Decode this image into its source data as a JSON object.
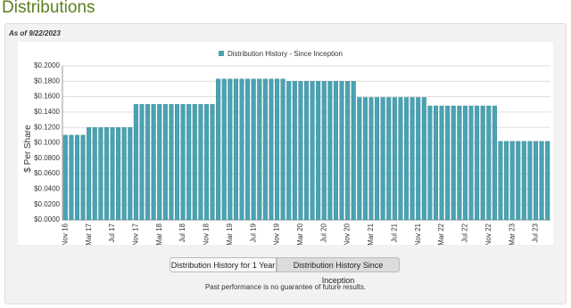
{
  "page": {
    "heading": "Distributions",
    "as_of": "As of 9/22/2023",
    "buttons": [
      "Distribution History for 1 Year",
      "Distribution History Since Inception"
    ],
    "footnote": "Past performance is no guarantee of future results."
  },
  "chart_data": {
    "type": "bar",
    "legend": "Distribution History - Since Inception",
    "y_label": "$ Per Share",
    "color": "#4aa3b3",
    "grid": true,
    "ylim": [
      0,
      0.2
    ],
    "yticks": [
      {
        "value": 0,
        "label": "$0.0000"
      },
      {
        "value": 0.02,
        "label": "$0.0200"
      },
      {
        "value": 0.04,
        "label": "$0.0400"
      },
      {
        "value": 0.06,
        "label": "$0.0600"
      },
      {
        "value": 0.08,
        "label": "$0.0800"
      },
      {
        "value": 0.1,
        "label": "$0.1000"
      },
      {
        "value": 0.12,
        "label": "$0.1200"
      },
      {
        "value": 0.14,
        "label": "$0.1400"
      },
      {
        "value": 0.16,
        "label": "$0.1600"
      },
      {
        "value": 0.18,
        "label": "$0.1800"
      },
      {
        "value": 0.2,
        "label": "$0.2000"
      }
    ],
    "categories": [
      "Nov 16",
      null,
      null,
      null,
      "Mar 17",
      null,
      null,
      null,
      "Jul 17",
      null,
      null,
      null,
      "Nov 17",
      null,
      null,
      null,
      "Mar 18",
      null,
      null,
      null,
      "Jul 18",
      null,
      null,
      null,
      "Nov 18",
      null,
      null,
      null,
      "Mar 19",
      null,
      null,
      null,
      "Jul 19",
      null,
      null,
      null,
      "Nov 19",
      null,
      null,
      null,
      "Mar 20",
      null,
      null,
      null,
      "Jul 20",
      null,
      null,
      null,
      "Nov 20",
      null,
      null,
      null,
      "Mar 21",
      null,
      null,
      null,
      "Jul 21",
      null,
      null,
      null,
      "Nov 21",
      null,
      null,
      null,
      "Mar 22",
      null,
      null,
      null,
      "Jul 22",
      null,
      null,
      null,
      "Nov 22",
      null,
      null,
      null,
      "Mar 23",
      null,
      null,
      null,
      "Jul 23",
      null,
      null
    ],
    "values": [
      0.11,
      0.11,
      0.11,
      0.11,
      0.12,
      0.12,
      0.12,
      0.12,
      0.12,
      0.12,
      0.12,
      0.12,
      0.15,
      0.15,
      0.15,
      0.15,
      0.15,
      0.15,
      0.15,
      0.15,
      0.15,
      0.15,
      0.15,
      0.15,
      0.15,
      0.15,
      0.183,
      0.183,
      0.183,
      0.183,
      0.183,
      0.183,
      0.183,
      0.183,
      0.183,
      0.183,
      0.183,
      0.183,
      0.18,
      0.18,
      0.18,
      0.18,
      0.18,
      0.18,
      0.18,
      0.18,
      0.18,
      0.18,
      0.18,
      0.18,
      0.159,
      0.159,
      0.159,
      0.159,
      0.159,
      0.159,
      0.159,
      0.159,
      0.159,
      0.159,
      0.159,
      0.159,
      0.148,
      0.148,
      0.148,
      0.148,
      0.148,
      0.148,
      0.148,
      0.148,
      0.148,
      0.148,
      0.148,
      0.148,
      0.102,
      0.102,
      0.102,
      0.102,
      0.102,
      0.102,
      0.102,
      0.102,
      0.102
    ]
  }
}
